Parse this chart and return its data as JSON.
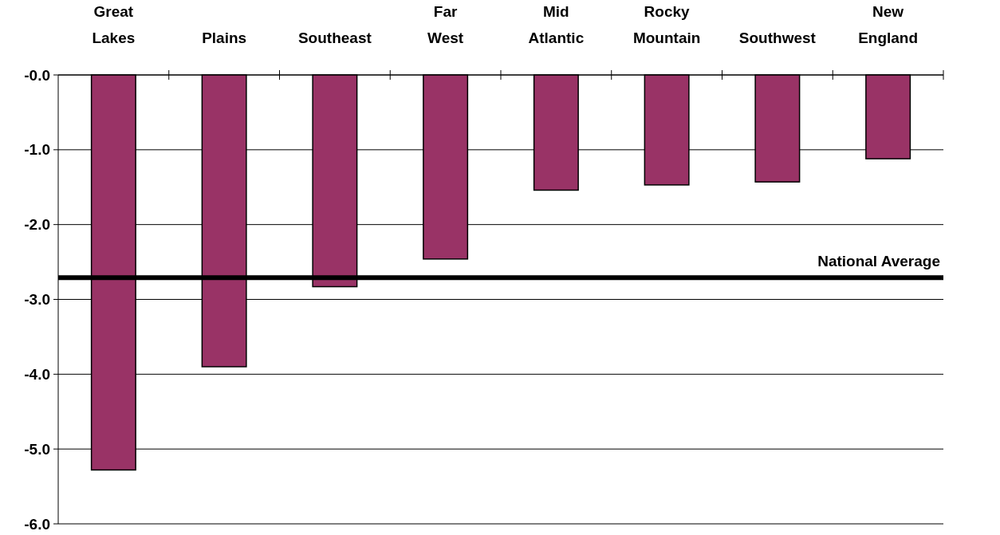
{
  "chart_data": {
    "type": "bar",
    "categories": [
      "Great Lakes",
      "Plains",
      "Southeast",
      "Far West",
      "Mid Atlantic",
      "Rocky Mountain",
      "Southwest",
      "New England"
    ],
    "series": [
      {
        "color": "#993366",
        "values": [
          -5.28,
          -3.9,
          -2.83,
          -2.46,
          -1.54,
          -1.47,
          -1.43,
          -1.12
        ]
      }
    ],
    "ylim": [
      -6,
      0
    ],
    "yticks": [
      {
        "value": 0,
        "label": "-0.0"
      },
      {
        "value": -1,
        "label": "-1.0"
      },
      {
        "value": -2,
        "label": "-2.0"
      },
      {
        "value": -3,
        "label": "-3.0"
      },
      {
        "value": -4,
        "label": "-4.0"
      },
      {
        "value": -5,
        "label": "-5.0"
      },
      {
        "value": -6,
        "label": "-6.0"
      }
    ],
    "grid": "y",
    "ref_lines": [
      {
        "axis": "y",
        "value": -2.71,
        "label": "National Average",
        "color": "#000000"
      }
    ]
  }
}
